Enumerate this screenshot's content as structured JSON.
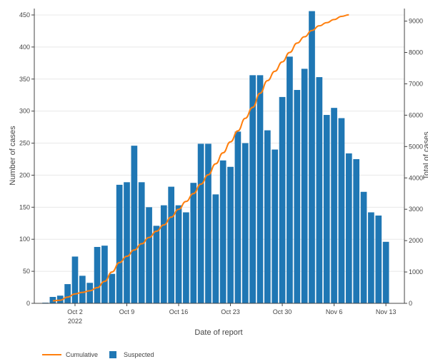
{
  "chart_data": {
    "type": "bar",
    "xlabel": "Date of report",
    "ylabel": "Number of cases",
    "y2label": "Total of cases",
    "ylim": [
      0,
      460
    ],
    "y2lim": [
      0,
      9400
    ],
    "yticks": [
      0,
      50,
      100,
      150,
      200,
      250,
      300,
      350,
      400,
      450
    ],
    "y2ticks": [
      0,
      1000,
      2000,
      3000,
      4000,
      5000,
      6000,
      7000,
      8000,
      9000
    ],
    "x_start": "2022-09-27",
    "x": [
      "2022-09-27",
      "2022-09-28",
      "2022-09-29",
      "2022-09-30",
      "2022-10-01",
      "2022-10-02",
      "2022-10-03",
      "2022-10-04",
      "2022-10-05",
      "2022-10-06",
      "2022-10-07",
      "2022-10-08",
      "2022-10-09",
      "2022-10-10",
      "2022-10-11",
      "2022-10-12",
      "2022-10-13",
      "2022-10-14",
      "2022-10-15",
      "2022-10-16",
      "2022-10-17",
      "2022-10-18",
      "2022-10-19",
      "2022-10-20",
      "2022-10-21",
      "2022-10-22",
      "2022-10-23",
      "2022-10-24",
      "2022-10-25",
      "2022-10-26",
      "2022-10-27",
      "2022-10-28",
      "2022-10-29",
      "2022-10-30",
      "2022-10-31",
      "2022-11-01",
      "2022-11-02",
      "2022-11-03",
      "2022-11-04",
      "2022-11-05",
      "2022-11-06",
      "2022-11-07",
      "2022-11-08",
      "2022-11-09",
      "2022-11-10",
      "2022-11-11",
      "2022-11-12",
      "2022-11-13",
      "2022-11-14",
      "2022-11-15"
    ],
    "xtick_labels": [
      {
        "date": "2022-10-02",
        "label": "Oct 2",
        "sublabel": "2022"
      },
      {
        "date": "2022-10-09",
        "label": "Oct 9",
        "sublabel": ""
      },
      {
        "date": "2022-10-16",
        "label": "Oct 16",
        "sublabel": ""
      },
      {
        "date": "2022-10-23",
        "label": "Oct 23",
        "sublabel": ""
      },
      {
        "date": "2022-10-30",
        "label": "Oct 30",
        "sublabel": ""
      },
      {
        "date": "2022-11-06",
        "label": "Nov 6",
        "sublabel": ""
      },
      {
        "date": "2022-11-13",
        "label": "Nov 13",
        "sublabel": ""
      }
    ],
    "series": [
      {
        "name": "Suspected",
        "kind": "bar",
        "axis": "left",
        "color": "#1f77b4",
        "values": [
          0,
          1,
          10,
          12,
          30,
          73,
          43,
          32,
          88,
          90,
          46,
          185,
          189,
          246,
          189,
          150,
          121,
          153,
          182,
          153,
          142,
          188,
          249,
          249,
          170,
          223,
          213,
          268,
          250,
          356,
          356,
          270,
          240,
          322,
          385,
          333,
          366,
          456,
          353,
          294,
          305,
          289,
          234,
          225,
          174,
          142,
          137,
          96,
          0,
          0
        ]
      },
      {
        "name": "Cumulative",
        "kind": "line",
        "axis": "right",
        "color": "#ff7f0e",
        "values": [
          null,
          null,
          80,
          100,
          200,
          300,
          350,
          400,
          500,
          700,
          1000,
          1300,
          1500,
          1700,
          1900,
          2100,
          2300,
          2500,
          2750,
          3000,
          3250,
          3500,
          3800,
          4100,
          4450,
          4800,
          5150,
          5500,
          5900,
          6250,
          6700,
          7100,
          7400,
          7700,
          8000,
          8300,
          8500,
          8700,
          8850,
          8950,
          9050,
          9150,
          9200,
          null,
          null,
          null,
          null,
          null,
          null,
          null
        ]
      }
    ],
    "legend_position": "bottom-left",
    "grid": true
  },
  "legend": {
    "items": [
      {
        "label": "Cumulative",
        "color": "#ff7f0e",
        "symbol": "line"
      },
      {
        "label": "Suspected",
        "color": "#1f77b4",
        "symbol": "square"
      }
    ]
  }
}
